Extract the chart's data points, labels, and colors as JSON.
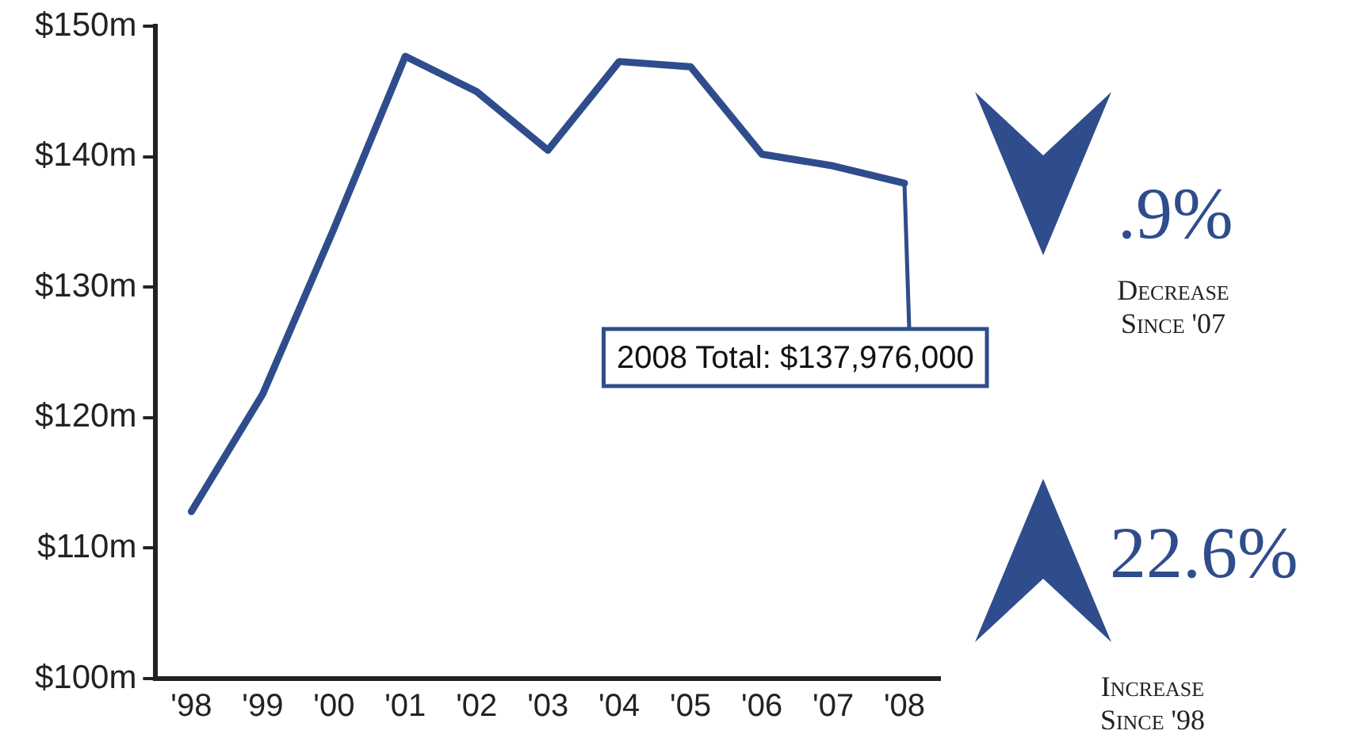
{
  "chart_data": {
    "type": "line",
    "categories": [
      "'98",
      "'99",
      "'00",
      "'01",
      "'02",
      "'03",
      "'04",
      "'05",
      "'06",
      "'07",
      "'08"
    ],
    "series": [
      {
        "color": "#2f4d8c",
        "values": [
          112.8,
          121.8,
          134.5,
          147.7,
          145,
          140.5,
          147.3,
          146.9,
          140.2,
          139.3,
          137.976
        ]
      }
    ],
    "ylim": [
      100,
      150
    ],
    "yticks": [
      {
        "value": 100,
        "label": "$100m"
      },
      {
        "value": 110,
        "label": "$110m"
      },
      {
        "value": 120,
        "label": "$120m"
      },
      {
        "value": 130,
        "label": "$130m"
      },
      {
        "value": 140,
        "label": "$140m"
      },
      {
        "value": 150,
        "label": "$150m"
      }
    ],
    "grid": false,
    "legend": false,
    "marker": "none",
    "line_style": "solid",
    "annotations": [
      {
        "text": "2008 Total: $137,976,000",
        "x": "'08",
        "y": 137.976
      },
      ".9%",
      "Decrease Since '07",
      "22.6%",
      "Increase Since '98"
    ]
  }
}
